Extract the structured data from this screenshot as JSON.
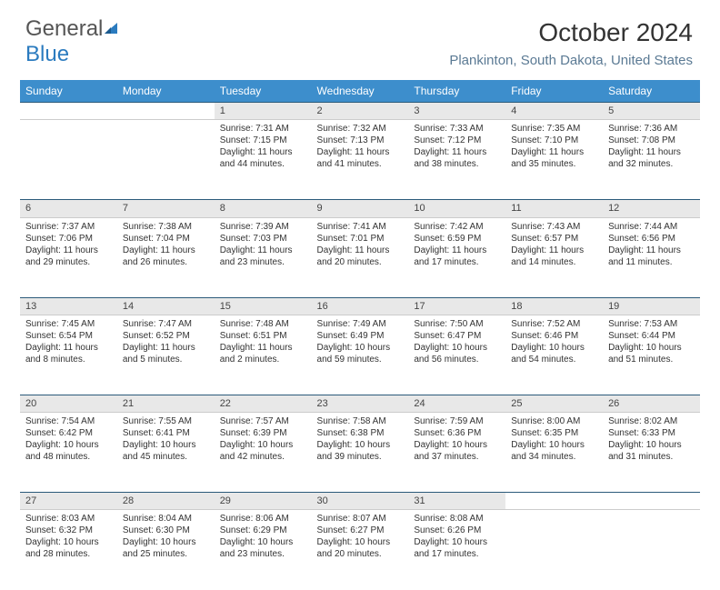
{
  "logo": {
    "text_gray": "General",
    "text_blue": "Blue"
  },
  "title": "October 2024",
  "subtitle": "Plankinton, South Dakota, United States",
  "colors": {
    "header_bg": "#3d8ecc",
    "header_text": "#ffffff",
    "daynum_bg": "#e8e8e8",
    "daynum_border_top": "#2b5a7a",
    "subtitle_color": "#5b7a94",
    "logo_blue": "#2b7bbf"
  },
  "day_headers": [
    "Sunday",
    "Monday",
    "Tuesday",
    "Wednesday",
    "Thursday",
    "Friday",
    "Saturday"
  ],
  "weeks": [
    [
      null,
      null,
      {
        "n": "1",
        "sr": "7:31 AM",
        "ss": "7:15 PM",
        "dl": "11 hours and 44 minutes."
      },
      {
        "n": "2",
        "sr": "7:32 AM",
        "ss": "7:13 PM",
        "dl": "11 hours and 41 minutes."
      },
      {
        "n": "3",
        "sr": "7:33 AM",
        "ss": "7:12 PM",
        "dl": "11 hours and 38 minutes."
      },
      {
        "n": "4",
        "sr": "7:35 AM",
        "ss": "7:10 PM",
        "dl": "11 hours and 35 minutes."
      },
      {
        "n": "5",
        "sr": "7:36 AM",
        "ss": "7:08 PM",
        "dl": "11 hours and 32 minutes."
      }
    ],
    [
      {
        "n": "6",
        "sr": "7:37 AM",
        "ss": "7:06 PM",
        "dl": "11 hours and 29 minutes."
      },
      {
        "n": "7",
        "sr": "7:38 AM",
        "ss": "7:04 PM",
        "dl": "11 hours and 26 minutes."
      },
      {
        "n": "8",
        "sr": "7:39 AM",
        "ss": "7:03 PM",
        "dl": "11 hours and 23 minutes."
      },
      {
        "n": "9",
        "sr": "7:41 AM",
        "ss": "7:01 PM",
        "dl": "11 hours and 20 minutes."
      },
      {
        "n": "10",
        "sr": "7:42 AM",
        "ss": "6:59 PM",
        "dl": "11 hours and 17 minutes."
      },
      {
        "n": "11",
        "sr": "7:43 AM",
        "ss": "6:57 PM",
        "dl": "11 hours and 14 minutes."
      },
      {
        "n": "12",
        "sr": "7:44 AM",
        "ss": "6:56 PM",
        "dl": "11 hours and 11 minutes."
      }
    ],
    [
      {
        "n": "13",
        "sr": "7:45 AM",
        "ss": "6:54 PM",
        "dl": "11 hours and 8 minutes."
      },
      {
        "n": "14",
        "sr": "7:47 AM",
        "ss": "6:52 PM",
        "dl": "11 hours and 5 minutes."
      },
      {
        "n": "15",
        "sr": "7:48 AM",
        "ss": "6:51 PM",
        "dl": "11 hours and 2 minutes."
      },
      {
        "n": "16",
        "sr": "7:49 AM",
        "ss": "6:49 PM",
        "dl": "10 hours and 59 minutes."
      },
      {
        "n": "17",
        "sr": "7:50 AM",
        "ss": "6:47 PM",
        "dl": "10 hours and 56 minutes."
      },
      {
        "n": "18",
        "sr": "7:52 AM",
        "ss": "6:46 PM",
        "dl": "10 hours and 54 minutes."
      },
      {
        "n": "19",
        "sr": "7:53 AM",
        "ss": "6:44 PM",
        "dl": "10 hours and 51 minutes."
      }
    ],
    [
      {
        "n": "20",
        "sr": "7:54 AM",
        "ss": "6:42 PM",
        "dl": "10 hours and 48 minutes."
      },
      {
        "n": "21",
        "sr": "7:55 AM",
        "ss": "6:41 PM",
        "dl": "10 hours and 45 minutes."
      },
      {
        "n": "22",
        "sr": "7:57 AM",
        "ss": "6:39 PM",
        "dl": "10 hours and 42 minutes."
      },
      {
        "n": "23",
        "sr": "7:58 AM",
        "ss": "6:38 PM",
        "dl": "10 hours and 39 minutes."
      },
      {
        "n": "24",
        "sr": "7:59 AM",
        "ss": "6:36 PM",
        "dl": "10 hours and 37 minutes."
      },
      {
        "n": "25",
        "sr": "8:00 AM",
        "ss": "6:35 PM",
        "dl": "10 hours and 34 minutes."
      },
      {
        "n": "26",
        "sr": "8:02 AM",
        "ss": "6:33 PM",
        "dl": "10 hours and 31 minutes."
      }
    ],
    [
      {
        "n": "27",
        "sr": "8:03 AM",
        "ss": "6:32 PM",
        "dl": "10 hours and 28 minutes."
      },
      {
        "n": "28",
        "sr": "8:04 AM",
        "ss": "6:30 PM",
        "dl": "10 hours and 25 minutes."
      },
      {
        "n": "29",
        "sr": "8:06 AM",
        "ss": "6:29 PM",
        "dl": "10 hours and 23 minutes."
      },
      {
        "n": "30",
        "sr": "8:07 AM",
        "ss": "6:27 PM",
        "dl": "10 hours and 20 minutes."
      },
      {
        "n": "31",
        "sr": "8:08 AM",
        "ss": "6:26 PM",
        "dl": "10 hours and 17 minutes."
      },
      null,
      null
    ]
  ],
  "labels": {
    "sunrise": "Sunrise:",
    "sunset": "Sunset:",
    "daylight": "Daylight:"
  }
}
